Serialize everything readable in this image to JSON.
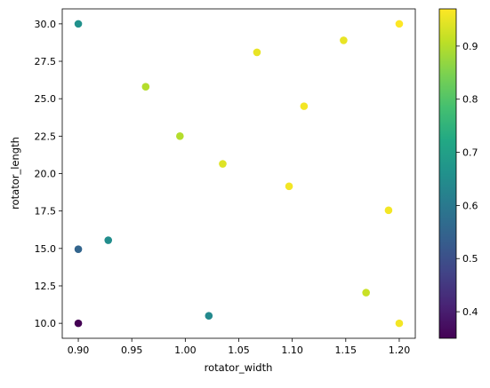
{
  "chart_data": {
    "type": "scatter",
    "title": "",
    "xlabel": "rotator_width",
    "ylabel": "rotator_length",
    "xlim": [
      0.885,
      1.215
    ],
    "ylim": [
      9.0,
      31.0
    ],
    "xticks": [
      0.9,
      0.95,
      1.0,
      1.05,
      1.1,
      1.15,
      1.2
    ],
    "xtick_labels": [
      "0.90",
      "0.95",
      "1.00",
      "1.05",
      "1.10",
      "1.15",
      "1.20"
    ],
    "yticks": [
      10.0,
      12.5,
      15.0,
      17.5,
      20.0,
      22.5,
      25.0,
      27.5,
      30.0
    ],
    "ytick_labels": [
      "10.0",
      "12.5",
      "15.0",
      "17.5",
      "20.0",
      "22.5",
      "25.0",
      "27.5",
      "30.0"
    ],
    "grid": false,
    "colormap": "viridis",
    "colorbar": {
      "range": [
        0.35,
        0.97
      ],
      "ticks": [
        0.4,
        0.5,
        0.6,
        0.7,
        0.8,
        0.9
      ],
      "tick_labels": [
        "0.4",
        "0.5",
        "0.6",
        "0.7",
        "0.8",
        "0.9"
      ]
    },
    "points": [
      {
        "x": 0.9,
        "y": 30.0,
        "c": 0.66
      },
      {
        "x": 0.9,
        "y": 14.95,
        "c": 0.55
      },
      {
        "x": 0.9,
        "y": 10.0,
        "c": 0.35
      },
      {
        "x": 0.928,
        "y": 15.55,
        "c": 0.65
      },
      {
        "x": 0.963,
        "y": 25.8,
        "c": 0.9
      },
      {
        "x": 0.995,
        "y": 22.5,
        "c": 0.9
      },
      {
        "x": 1.022,
        "y": 10.5,
        "c": 0.64
      },
      {
        "x": 1.035,
        "y": 20.65,
        "c": 0.94
      },
      {
        "x": 1.067,
        "y": 28.1,
        "c": 0.95
      },
      {
        "x": 1.097,
        "y": 19.15,
        "c": 0.96
      },
      {
        "x": 1.111,
        "y": 24.5,
        "c": 0.96
      },
      {
        "x": 1.148,
        "y": 28.9,
        "c": 0.95
      },
      {
        "x": 1.169,
        "y": 12.05,
        "c": 0.92
      },
      {
        "x": 1.19,
        "y": 17.55,
        "c": 0.96
      },
      {
        "x": 1.2,
        "y": 30.0,
        "c": 0.97
      },
      {
        "x": 1.2,
        "y": 10.0,
        "c": 0.96
      }
    ]
  }
}
